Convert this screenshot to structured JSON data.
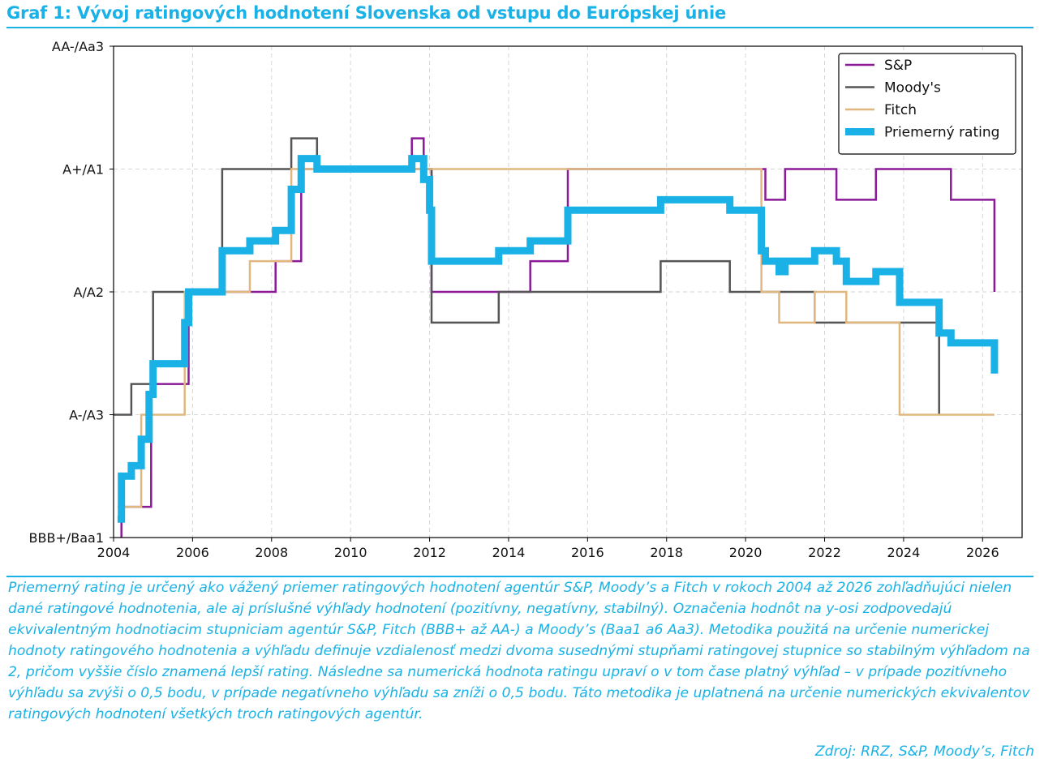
{
  "header": {
    "title": "Graf 1: Vývoj ratingových hodnotení Slovenska od vstupu do Európskej únie"
  },
  "colors": {
    "accent": "#1ab2e6",
    "sp": "#8b1a99",
    "moodys": "#555555",
    "fitch": "#e0b87f",
    "average": "#1ab2e6"
  },
  "chart_data": {
    "type": "line",
    "title": "",
    "xlabel": "",
    "ylabel": "",
    "xlim": [
      2004,
      2027
    ],
    "ylim": [
      0,
      8
    ],
    "x_ticks": [
      2004,
      2006,
      2008,
      2010,
      2012,
      2014,
      2016,
      2018,
      2020,
      2022,
      2024,
      2026
    ],
    "y_ticks": [
      {
        "value": 0,
        "label": "BBB+/Baa1"
      },
      {
        "value": 2,
        "label": "A-/A3"
      },
      {
        "value": 4,
        "label": "A/A2"
      },
      {
        "value": 6,
        "label": "A+/A1"
      },
      {
        "value": 8,
        "label": "AA-/Aa3"
      }
    ],
    "grid": true,
    "legend_position": "top-right",
    "series": [
      {
        "name": "S&P",
        "color": "#8b1a99",
        "width": 2.5,
        "step": true,
        "points": [
          [
            2004.2,
            0
          ],
          [
            2004.2,
            0.5
          ],
          [
            2004.95,
            0.5
          ],
          [
            2004.95,
            2.5
          ],
          [
            2005.9,
            2.5
          ],
          [
            2005.9,
            4
          ],
          [
            2008.1,
            4
          ],
          [
            2008.1,
            4.5
          ],
          [
            2008.75,
            4.5
          ],
          [
            2008.75,
            6
          ],
          [
            2011.55,
            6
          ],
          [
            2011.55,
            6.5
          ],
          [
            2011.85,
            6.5
          ],
          [
            2011.85,
            6
          ],
          [
            2012.05,
            6
          ],
          [
            2012.05,
            4
          ],
          [
            2014.55,
            4
          ],
          [
            2014.55,
            4.5
          ],
          [
            2015.5,
            4.5
          ],
          [
            2015.5,
            6
          ],
          [
            2020.5,
            6
          ],
          [
            2020.5,
            5.5
          ],
          [
            2021.0,
            5.5
          ],
          [
            2021.0,
            6
          ],
          [
            2022.3,
            6
          ],
          [
            2022.3,
            5.5
          ],
          [
            2023.3,
            5.5
          ],
          [
            2023.3,
            6
          ],
          [
            2025.2,
            6
          ],
          [
            2025.2,
            5.5
          ],
          [
            2026.3,
            5.5
          ],
          [
            2026.3,
            4
          ]
        ]
      },
      {
        "name": "Moody's",
        "color": "#555555",
        "width": 2.5,
        "step": true,
        "points": [
          [
            2004.0,
            2
          ],
          [
            2004.45,
            2
          ],
          [
            2004.45,
            2.5
          ],
          [
            2005.0,
            2.5
          ],
          [
            2005.0,
            4
          ],
          [
            2006.75,
            4
          ],
          [
            2006.75,
            6
          ],
          [
            2008.5,
            6
          ],
          [
            2008.5,
            6.5
          ],
          [
            2009.15,
            6.5
          ],
          [
            2009.15,
            6
          ],
          [
            2012.05,
            6
          ],
          [
            2012.05,
            3.5
          ],
          [
            2013.75,
            3.5
          ],
          [
            2013.75,
            4
          ],
          [
            2017.85,
            4
          ],
          [
            2017.85,
            4.5
          ],
          [
            2019.6,
            4.5
          ],
          [
            2019.6,
            4
          ],
          [
            2021.75,
            4
          ],
          [
            2021.75,
            3.5
          ],
          [
            2024.9,
            3.5
          ],
          [
            2024.9,
            2
          ]
        ]
      },
      {
        "name": "Fitch",
        "color": "#e0b87f",
        "width": 2.5,
        "step": true,
        "points": [
          [
            2004.1,
            0.5
          ],
          [
            2004.7,
            0.5
          ],
          [
            2004.7,
            2
          ],
          [
            2005.8,
            2
          ],
          [
            2005.8,
            4
          ],
          [
            2007.45,
            4
          ],
          [
            2007.45,
            4.5
          ],
          [
            2008.5,
            4.5
          ],
          [
            2008.5,
            6
          ],
          [
            2020.4,
            6
          ],
          [
            2020.4,
            4
          ],
          [
            2020.85,
            4
          ],
          [
            2020.85,
            3.5
          ],
          [
            2021.75,
            3.5
          ],
          [
            2021.75,
            4
          ],
          [
            2022.55,
            4
          ],
          [
            2022.55,
            3.5
          ],
          [
            2023.9,
            3.5
          ],
          [
            2023.9,
            2
          ],
          [
            2026.3,
            2
          ]
        ]
      },
      {
        "name": "Priemerný rating",
        "color": "#1ab2e6",
        "width": 9,
        "step": true,
        "points": [
          [
            2004.1,
            0.3
          ],
          [
            2004.2,
            0.3
          ],
          [
            2004.2,
            1.0
          ],
          [
            2004.45,
            1.0
          ],
          [
            2004.45,
            1.17
          ],
          [
            2004.7,
            1.17
          ],
          [
            2004.7,
            1.6
          ],
          [
            2004.9,
            1.6
          ],
          [
            2004.9,
            2.33
          ],
          [
            2005.0,
            2.33
          ],
          [
            2005.0,
            2.83
          ],
          [
            2005.8,
            2.83
          ],
          [
            2005.8,
            3.5
          ],
          [
            2005.9,
            3.5
          ],
          [
            2005.9,
            4
          ],
          [
            2006.75,
            4
          ],
          [
            2006.75,
            4.67
          ],
          [
            2007.45,
            4.67
          ],
          [
            2007.45,
            4.83
          ],
          [
            2008.1,
            4.83
          ],
          [
            2008.1,
            5.0
          ],
          [
            2008.5,
            5.0
          ],
          [
            2008.5,
            5.67
          ],
          [
            2008.75,
            5.67
          ],
          [
            2008.75,
            6.17
          ],
          [
            2009.15,
            6.17
          ],
          [
            2009.15,
            6
          ],
          [
            2011.55,
            6
          ],
          [
            2011.55,
            6.17
          ],
          [
            2011.85,
            6.17
          ],
          [
            2011.85,
            5.83
          ],
          [
            2012.0,
            5.83
          ],
          [
            2012.0,
            5.33
          ],
          [
            2012.05,
            5.33
          ],
          [
            2012.05,
            4.5
          ],
          [
            2013.75,
            4.5
          ],
          [
            2013.75,
            4.67
          ],
          [
            2014.55,
            4.67
          ],
          [
            2014.55,
            4.83
          ],
          [
            2015.5,
            4.83
          ],
          [
            2015.5,
            5.33
          ],
          [
            2017.85,
            5.33
          ],
          [
            2017.85,
            5.5
          ],
          [
            2019.6,
            5.5
          ],
          [
            2019.6,
            5.33
          ],
          [
            2020.4,
            5.33
          ],
          [
            2020.4,
            4.67
          ],
          [
            2020.5,
            4.67
          ],
          [
            2020.5,
            4.5
          ],
          [
            2020.85,
            4.5
          ],
          [
            2020.85,
            4.33
          ],
          [
            2021.0,
            4.33
          ],
          [
            2021.0,
            4.5
          ],
          [
            2021.75,
            4.5
          ],
          [
            2021.75,
            4.67
          ],
          [
            2022.3,
            4.67
          ],
          [
            2022.3,
            4.5
          ],
          [
            2022.55,
            4.5
          ],
          [
            2022.55,
            4.17
          ],
          [
            2023.3,
            4.17
          ],
          [
            2023.3,
            4.33
          ],
          [
            2023.9,
            4.33
          ],
          [
            2023.9,
            3.83
          ],
          [
            2024.9,
            3.83
          ],
          [
            2024.9,
            3.33
          ],
          [
            2025.2,
            3.33
          ],
          [
            2025.2,
            3.17
          ],
          [
            2026.3,
            3.17
          ],
          [
            2026.3,
            2.67
          ]
        ]
      }
    ]
  },
  "footer": {
    "note": "Priemerný rating je určený ako vážený priemer ratingových hodnotení agentúr S&P, Moody’s a Fitch v rokoch 2004 až 2026 zohľadňujúci nielen dané ratingové hodnotenia, ale aj príslušné výhľady hodnotení (pozitívny, negatívny, stabilný). Označenia hodnôt na y-osi zodpovedajú ekvivalentným hodnotiacim stupniciam agentúr S&P, Fitch (BBB+ až AA-) a Moody’s (Baa1 a6 Aa3). Metodika použitá na určenie numerickej hodnoty ratingového hodnotenia a výhľadu definuje vzdialenosť medzi dvoma susednými stupňami ratingovej stupnice so stabilným výhľadom na 2, pričom vyššie číslo znamená lepší rating. Následne sa numerická hodnota ratingu upraví o v tom čase platný výhľad – v prípade pozitívneho výhľadu sa zvýši o 0,5 bodu, v prípade negatívneho výhľadu sa zníži o 0,5 bodu. Táto metodika je uplatnená na určenie numerických ekvivalentov ratingových hodnotení všetkých troch ratingových agentúr.",
    "source": "Zdroj: RRZ, S&P, Moody’s, Fitch"
  }
}
